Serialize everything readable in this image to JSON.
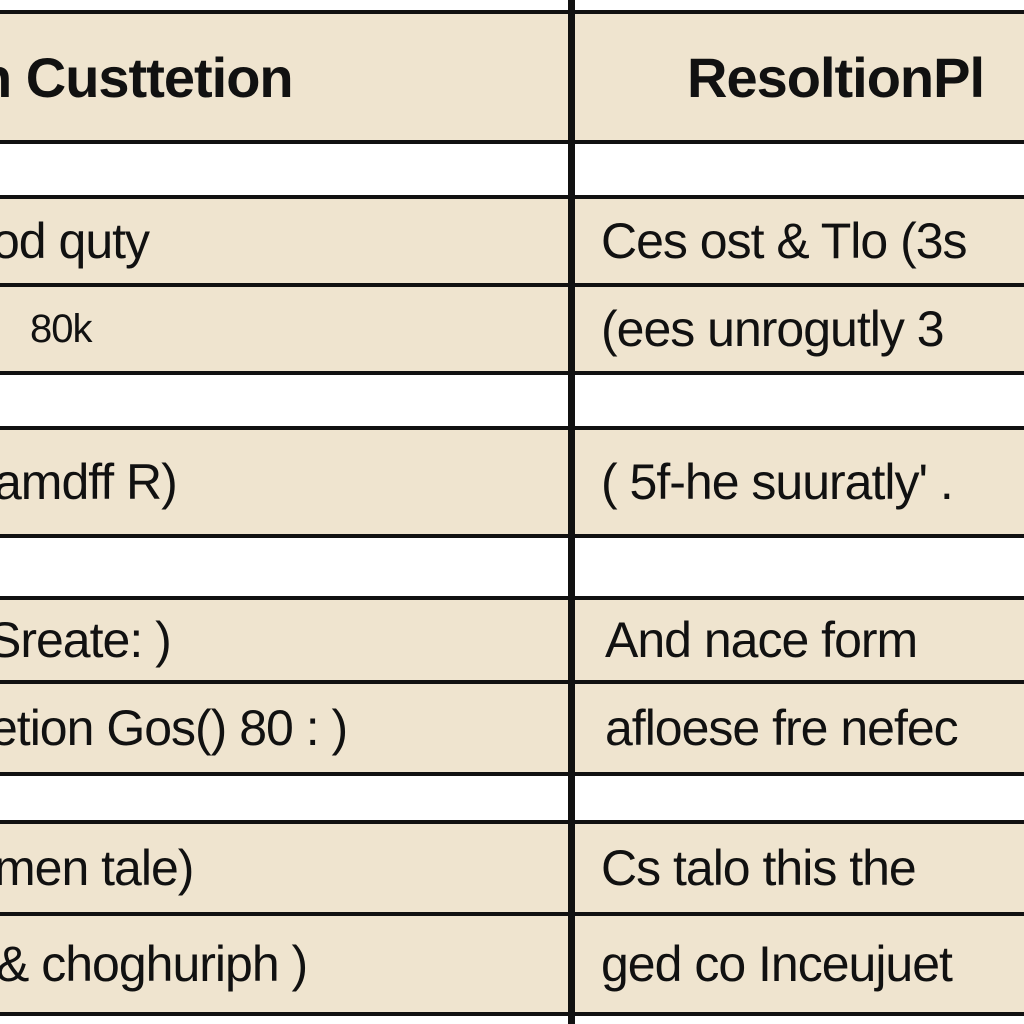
{
  "table": {
    "headers": [
      "n Custtetion",
      "ResoltionPl"
    ],
    "rows": [
      {
        "left": "od quty",
        "right": "Ces ost & Tlo  (3s"
      },
      {
        "left": "80k",
        "right": "(ees unrogutly 3"
      },
      {
        "left": "amdff R)",
        "right": "( 5f-he suuratly' ."
      },
      {
        "left": "Sreate: )",
        "right": "And nace form"
      },
      {
        "left": "etion Gos() 80 : )",
        "right": "afloese fre nefec"
      },
      {
        "left": "men tale)",
        "right": "Cs talo this the"
      },
      {
        "left": "&  choghuriph )",
        "right": "ged co Inceujuet"
      }
    ]
  },
  "colors": {
    "cell_fill": "#efe4cf",
    "gap_fill": "#ffffff",
    "grid_line": "#111111"
  }
}
